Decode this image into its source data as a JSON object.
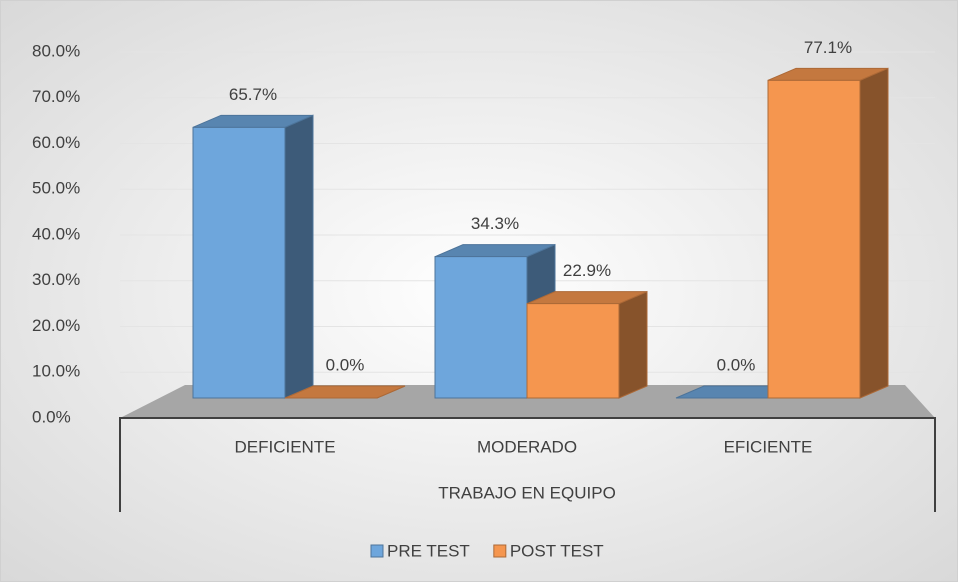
{
  "chart_data": {
    "type": "bar3d",
    "categories": [
      "DEFICIENTE",
      "MODERADO",
      "EFICIENTE"
    ],
    "x_label": "TRABAJO EN EQUIPO",
    "series": [
      {
        "name": "PRE TEST",
        "color": "#6ea6dc",
        "values": [
          65.7,
          34.3,
          0.0
        ],
        "value_labels": [
          "65.7%",
          "34.3%",
          "0.0%"
        ]
      },
      {
        "name": "POST TEST",
        "color": "#f5964f",
        "values": [
          0.0,
          22.9,
          77.1
        ],
        "value_labels": [
          "0.0%",
          "22.9%",
          "77.1%"
        ]
      }
    ],
    "ylim": [
      0,
      80
    ],
    "yticks": [
      {
        "value": 0,
        "label": "0.0%"
      },
      {
        "value": 10,
        "label": "10.0%"
      },
      {
        "value": 20,
        "label": "20.0%"
      },
      {
        "value": 30,
        "label": "30.0%"
      },
      {
        "value": 40,
        "label": "40.0%"
      },
      {
        "value": 50,
        "label": "50.0%"
      },
      {
        "value": 60,
        "label": "60.0%"
      },
      {
        "value": 70,
        "label": "70.0%"
      },
      {
        "value": 80,
        "label": "80.0%"
      }
    ],
    "grid": true,
    "legend": "bottom"
  }
}
